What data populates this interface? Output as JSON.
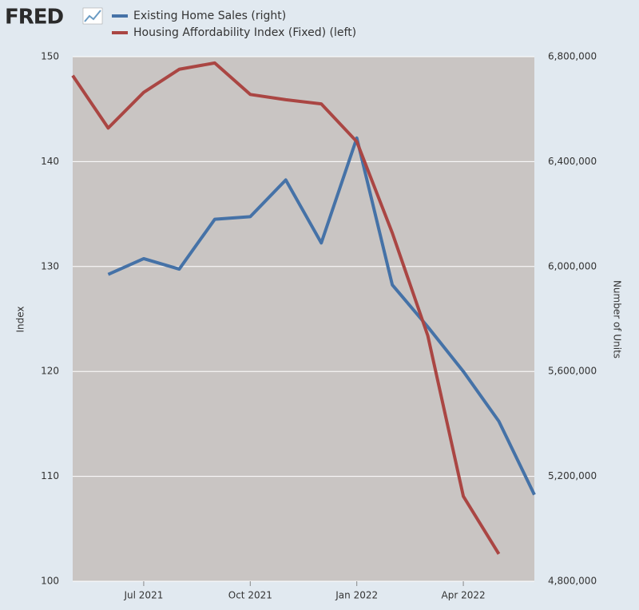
{
  "logo": "FRED",
  "chart_data": {
    "type": "line",
    "x": [
      "2021-05",
      "2021-06",
      "2021-07",
      "2021-08",
      "2021-09",
      "2021-10",
      "2021-11",
      "2021-12",
      "2022-01",
      "2022-02",
      "2022-03",
      "2022-04",
      "2022-05",
      "2022-06"
    ],
    "xlim": [
      "2021-05",
      "2022-06"
    ],
    "xticks": [
      {
        "value": "2021-07",
        "label": "Jul 2021"
      },
      {
        "value": "2021-10",
        "label": "Oct 2021"
      },
      {
        "value": "2022-01",
        "label": "Jan 2022"
      },
      {
        "value": "2022-04",
        "label": "Apr 2022"
      }
    ],
    "ylabel": "Index",
    "y2label": "Number of Units",
    "ylim": [
      100,
      150
    ],
    "yticks": [
      100,
      110,
      120,
      130,
      140,
      150
    ],
    "y2lim": [
      4800000,
      6800000
    ],
    "y2ticks": [
      {
        "value": 4800000,
        "label": "4,800,000"
      },
      {
        "value": 5200000,
        "label": "5,200,000"
      },
      {
        "value": 5600000,
        "label": "5,600,000"
      },
      {
        "value": 6000000,
        "label": "6,000,000"
      },
      {
        "value": 6400000,
        "label": "6,400,000"
      },
      {
        "value": 6800000,
        "label": "6,800,000"
      }
    ],
    "grid": true,
    "series": [
      {
        "name": "Existing Home Sales (right)",
        "color": "#4572a7",
        "axis": "y2",
        "values": [
          null,
          5970000,
          6030000,
          5990000,
          6180000,
          6190000,
          6330000,
          6090000,
          6490000,
          5930000,
          5770000,
          5600000,
          5410000,
          5130000
        ]
      },
      {
        "name": "Housing Affordability Index (Fixed) (left)",
        "color": "#aa4643",
        "axis": "y",
        "values": [
          148.2,
          143.2,
          146.6,
          148.8,
          149.4,
          146.4,
          145.9,
          145.5,
          141.9,
          133.2,
          123.4,
          108.1,
          102.6,
          null
        ]
      }
    ]
  }
}
